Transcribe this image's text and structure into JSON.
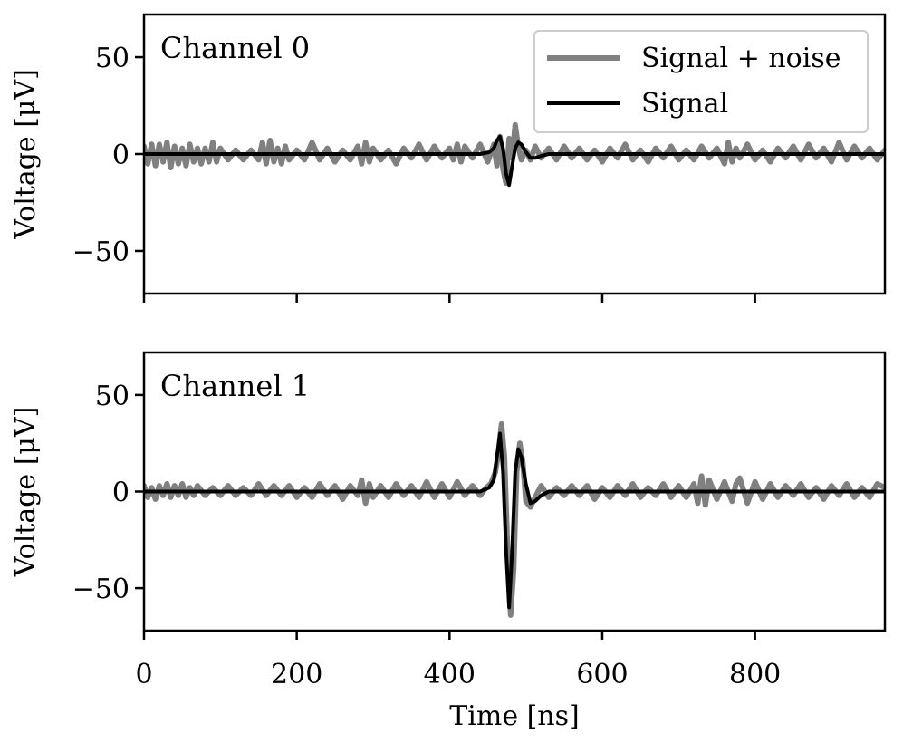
{
  "chart_data": [
    {
      "type": "line",
      "title": "Channel 0",
      "xlabel": "",
      "ylabel": "Voltage [μV]",
      "xlim": [
        0,
        970
      ],
      "ylim": [
        -72,
        72
      ],
      "xticks": [
        0,
        200,
        400,
        600,
        800
      ],
      "xtick_labels": [
        "",
        "",
        "",
        "",
        ""
      ],
      "yticks": [
        -50,
        0,
        50
      ],
      "ytick_labels": [
        "−50",
        "0",
        "50"
      ],
      "legend": {
        "position": "top-right",
        "entries": [
          "Signal + noise",
          "Signal"
        ]
      },
      "grid": false,
      "series": [
        {
          "name": "Signal + noise",
          "color": "#808080",
          "x": [
            0,
            5,
            10,
            15,
            20,
            25,
            30,
            35,
            40,
            45,
            50,
            55,
            60,
            65,
            70,
            75,
            80,
            85,
            90,
            95,
            100,
            110,
            120,
            130,
            140,
            150,
            155,
            160,
            165,
            170,
            175,
            180,
            185,
            190,
            200,
            210,
            220,
            230,
            240,
            250,
            260,
            270,
            280,
            285,
            290,
            295,
            300,
            310,
            320,
            330,
            340,
            350,
            360,
            370,
            380,
            390,
            400,
            405,
            410,
            415,
            420,
            430,
            440,
            450,
            458,
            462,
            466,
            470,
            474,
            478,
            482,
            486,
            490,
            494,
            500,
            506,
            512,
            520,
            530,
            540,
            550,
            560,
            570,
            580,
            590,
            600,
            610,
            620,
            630,
            640,
            650,
            660,
            670,
            680,
            690,
            700,
            710,
            720,
            730,
            740,
            750,
            760,
            765,
            770,
            775,
            780,
            790,
            800,
            810,
            820,
            830,
            840,
            850,
            860,
            870,
            880,
            890,
            900,
            910,
            920,
            930,
            940,
            950,
            960,
            970
          ],
          "values": [
            4,
            -5,
            5,
            -6,
            5,
            -4,
            6,
            -7,
            4,
            -5,
            3,
            -6,
            5,
            -4,
            3,
            -5,
            3,
            -4,
            6,
            -4,
            3,
            -3,
            2,
            -3,
            2,
            -3,
            6,
            -5,
            7,
            -4,
            3,
            -5,
            4,
            -3,
            2,
            -3,
            6,
            -3,
            3,
            -4,
            2,
            -3,
            4,
            -5,
            6,
            -4,
            3,
            -3,
            2,
            -5,
            3,
            -2,
            5,
            -3,
            4,
            -2,
            3,
            -3,
            5,
            -4,
            4,
            -2,
            5,
            -4,
            5,
            -6,
            9,
            -8,
            -15,
            8,
            -2,
            15,
            4,
            -3,
            2,
            -3,
            4,
            -2,
            3,
            -3,
            4,
            -2,
            3,
            -3,
            2,
            -4,
            3,
            -2,
            5,
            -3,
            2,
            -4,
            3,
            -2,
            4,
            -3,
            2,
            -3,
            4,
            -2,
            3,
            -5,
            6,
            -4,
            3,
            -2,
            5,
            -3,
            2,
            -4,
            3,
            -2,
            4,
            -3,
            5,
            -2,
            3,
            -4,
            6,
            -3,
            4,
            -2,
            3,
            -3,
            2
          ]
        },
        {
          "name": "Signal",
          "color": "#000000",
          "x": [
            0,
            440,
            452,
            458,
            462,
            466,
            470,
            474,
            478,
            482,
            486,
            490,
            494,
            500,
            506,
            512,
            520,
            530,
            545,
            970
          ],
          "values": [
            0,
            0,
            1,
            3,
            7,
            9,
            3,
            -10,
            -16,
            -6,
            3,
            6,
            5,
            1,
            -2,
            -2,
            -1,
            0,
            0,
            0
          ]
        }
      ]
    },
    {
      "type": "line",
      "title": "Channel 1",
      "xlabel": "Time [ns]",
      "ylabel": "Voltage [μV]",
      "xlim": [
        0,
        970
      ],
      "ylim": [
        -72,
        72
      ],
      "xticks": [
        0,
        200,
        400,
        600,
        800
      ],
      "xtick_labels": [
        "0",
        "200",
        "400",
        "600",
        "800"
      ],
      "yticks": [
        -50,
        0,
        50
      ],
      "ytick_labels": [
        "−50",
        "0",
        "50"
      ],
      "grid": false,
      "series": [
        {
          "name": "Signal + noise",
          "color": "#808080",
          "x": [
            0,
            5,
            10,
            15,
            20,
            25,
            30,
            35,
            40,
            45,
            50,
            55,
            60,
            65,
            70,
            80,
            90,
            100,
            110,
            120,
            130,
            140,
            150,
            160,
            170,
            180,
            190,
            200,
            210,
            220,
            230,
            240,
            250,
            260,
            270,
            280,
            285,
            290,
            295,
            300,
            310,
            320,
            330,
            340,
            350,
            360,
            370,
            380,
            390,
            400,
            410,
            420,
            430,
            440,
            448,
            454,
            460,
            464,
            468,
            472,
            476,
            480,
            484,
            488,
            492,
            496,
            500,
            506,
            512,
            520,
            530,
            540,
            550,
            560,
            570,
            580,
            590,
            600,
            610,
            620,
            630,
            640,
            650,
            660,
            670,
            680,
            690,
            700,
            710,
            720,
            725,
            730,
            735,
            740,
            750,
            760,
            770,
            775,
            780,
            790,
            800,
            810,
            820,
            830,
            840,
            850,
            860,
            870,
            880,
            890,
            900,
            910,
            920,
            930,
            940,
            950,
            960,
            970
          ],
          "values": [
            3,
            -3,
            2,
            -4,
            3,
            -2,
            4,
            -3,
            3,
            -2,
            4,
            -3,
            2,
            -2,
            3,
            -2,
            2,
            -2,
            3,
            -2,
            2,
            -2,
            4,
            -2,
            3,
            -2,
            3,
            -3,
            2,
            -3,
            4,
            -2,
            3,
            -4,
            3,
            -2,
            6,
            -6,
            4,
            -3,
            3,
            -3,
            4,
            -2,
            3,
            -3,
            5,
            -3,
            4,
            -3,
            5,
            -2,
            3,
            -2,
            2,
            4,
            10,
            20,
            35,
            18,
            -30,
            -64,
            -40,
            10,
            25,
            15,
            -5,
            -8,
            -3,
            3,
            -3,
            2,
            -2,
            3,
            -2,
            3,
            -4,
            2,
            -3,
            3,
            -2,
            4,
            -3,
            2,
            -2,
            4,
            -3,
            3,
            -3,
            4,
            -6,
            8,
            -7,
            6,
            -4,
            5,
            -5,
            4,
            7,
            -6,
            5,
            -4,
            4,
            -3,
            3,
            -2,
            4,
            -3,
            2,
            -4,
            3,
            -2,
            4,
            -3,
            2,
            -3,
            4,
            2
          ]
        },
        {
          "name": "Signal",
          "color": "#000000",
          "x": [
            0,
            440,
            452,
            458,
            462,
            466,
            470,
            474,
            478,
            482,
            486,
            490,
            494,
            500,
            506,
            512,
            520,
            530,
            545,
            970
          ],
          "values": [
            0,
            0,
            2,
            6,
            18,
            30,
            10,
            -30,
            -60,
            -30,
            10,
            22,
            18,
            4,
            -6,
            -5,
            -2,
            0,
            0,
            0
          ]
        }
      ]
    }
  ]
}
